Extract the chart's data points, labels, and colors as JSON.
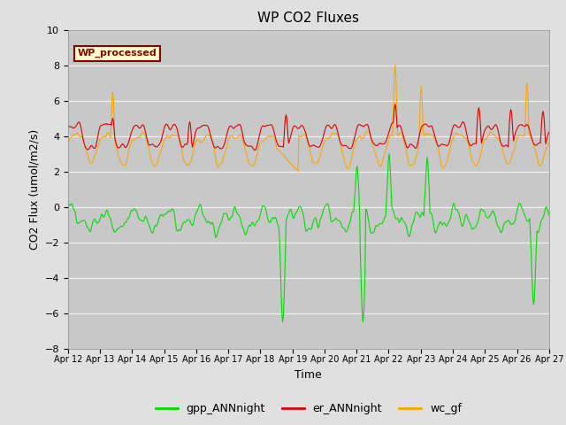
{
  "title": "WP CO2 Fluxes",
  "xlabel": "Time",
  "ylabel": "CO2 Flux (umol/m2/s)",
  "ylim": [
    -8,
    10
  ],
  "yticks": [
    -8,
    -6,
    -4,
    -2,
    0,
    2,
    4,
    6,
    8,
    10
  ],
  "xticklabels": [
    "Apr 12",
    "Apr 13",
    "Apr 14",
    "Apr 15",
    "Apr 16",
    "Apr 17",
    "Apr 18",
    "Apr 19",
    "Apr 20",
    "Apr 21",
    "Apr 22",
    "Apr 23",
    "Apr 24",
    "Apr 25",
    "Apr 26",
    "Apr 27"
  ],
  "n_points": 720,
  "n_days": 15,
  "annotation_text": "WP_processed",
  "annotation_facecolor": "#ffffcc",
  "annotation_edgecolor": "#8B0000",
  "annotation_textcolor": "#8B0000",
  "colors": {
    "gpp": "#00dd00",
    "er": "#dd0000",
    "wc": "#ffa500"
  },
  "legend_labels": [
    "gpp_ANNnight",
    "er_ANNnight",
    "wc_gf"
  ],
  "bg_color": "#e0e0e0",
  "plot_bg_color": "#c8c8c8",
  "grid_color": "#f0f0f0",
  "line_width": 0.8,
  "figsize": [
    6.4,
    4.8
  ],
  "dpi": 100
}
